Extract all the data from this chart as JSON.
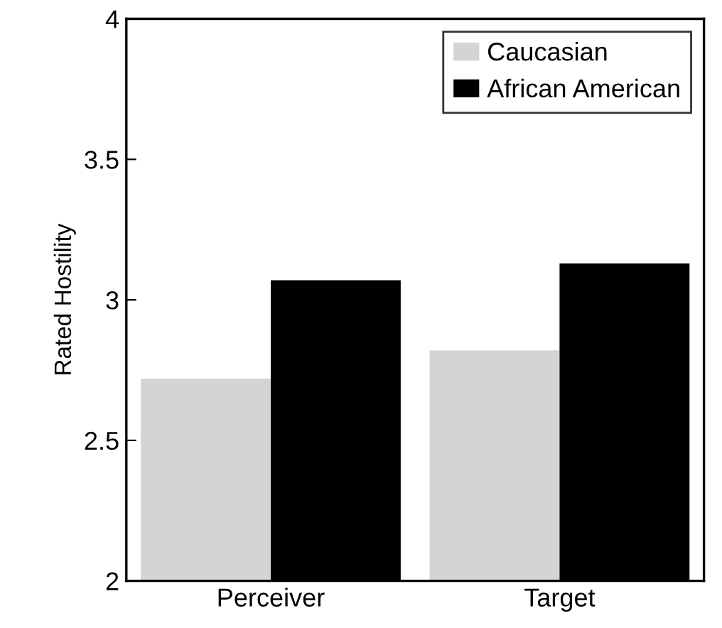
{
  "chart_data": {
    "type": "bar",
    "ylabel": "Rated Hostility",
    "categories": [
      "Perceiver",
      "Target"
    ],
    "series": [
      {
        "name": "Caucasian",
        "color": "#d4d4d4",
        "values": [
          2.72,
          2.82
        ]
      },
      {
        "name": "African American",
        "color": "#000000",
        "values": [
          3.07,
          3.13
        ]
      }
    ],
    "ylim": [
      2,
      4
    ],
    "yticks": [
      2,
      2.5,
      3,
      3.5,
      4
    ],
    "grid": false,
    "legend": "top right"
  }
}
